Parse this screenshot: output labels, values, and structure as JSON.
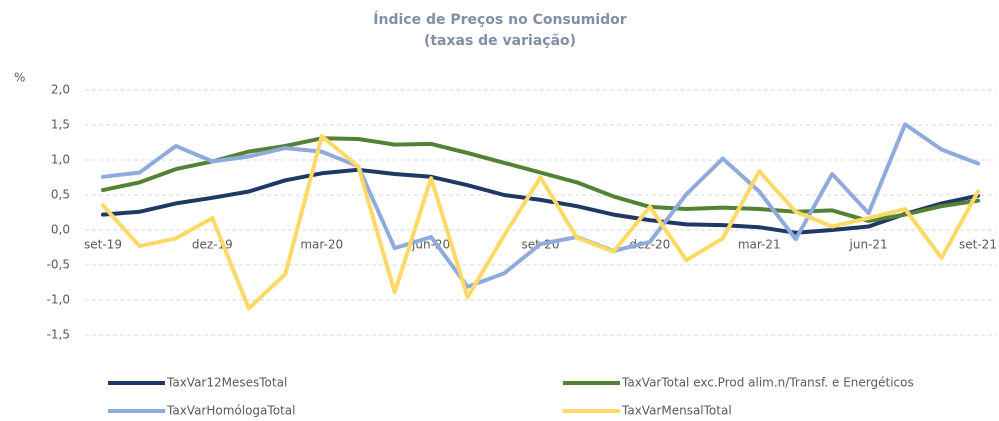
{
  "chart_data": {
    "type": "line",
    "title": [
      "Índice de Preços no Consumidor",
      "(taxas de variação)"
    ],
    "ylabel": "%",
    "categories": [
      "set-19",
      null,
      null,
      "dez-19",
      null,
      null,
      "mar-20",
      null,
      null,
      "jun-20",
      null,
      null,
      "set-20",
      null,
      null,
      "dez-20",
      null,
      null,
      "mar-21",
      null,
      null,
      "jun-21",
      null,
      null,
      "set-21"
    ],
    "series": [
      {
        "name": "TaxVar12MesesTotal",
        "color": "#1f3864",
        "values": [
          0.22,
          0.26,
          0.38,
          0.46,
          0.55,
          0.71,
          0.81,
          0.86,
          0.8,
          0.76,
          0.64,
          0.5,
          0.43,
          0.34,
          0.22,
          0.14,
          0.08,
          0.07,
          0.04,
          -0.04,
          0.0,
          0.05,
          0.23,
          0.38,
          0.49
        ]
      },
      {
        "name": "TaxVarTotal exc.Prod alim.n/Transf. e Energéticos",
        "color": "#548235",
        "values": [
          0.57,
          0.68,
          0.87,
          0.98,
          1.12,
          1.2,
          1.31,
          1.3,
          1.22,
          1.23,
          1.1,
          0.96,
          0.82,
          0.68,
          0.48,
          0.33,
          0.3,
          0.32,
          0.3,
          0.26,
          0.28,
          0.13,
          0.22,
          0.34,
          0.42
        ]
      },
      {
        "name": "TaxVarHomólogaTotal",
        "color": "#8faadc",
        "values": [
          0.76,
          0.82,
          1.2,
          0.98,
          1.05,
          1.17,
          1.12,
          0.91,
          -0.26,
          -0.1,
          -0.81,
          -0.62,
          -0.2,
          -0.1,
          -0.3,
          -0.17,
          0.51,
          1.02,
          0.55,
          -0.13,
          0.8,
          0.24,
          1.51,
          1.15,
          0.95
        ]
      },
      {
        "name": "TaxVarMensalTotal",
        "color": "#ffd966",
        "values": [
          0.35,
          -0.23,
          -0.12,
          0.17,
          -1.12,
          -0.63,
          1.34,
          0.91,
          -0.89,
          0.74,
          -0.96,
          -0.08,
          0.75,
          -0.11,
          -0.31,
          0.33,
          -0.43,
          -0.12,
          0.84,
          0.26,
          0.05,
          0.17,
          0.3,
          -0.4,
          0.55
        ]
      }
    ],
    "ylim": [
      -1.5,
      2.0
    ],
    "yticks": [
      {
        "value": -1.5,
        "label": "-1,5"
      },
      {
        "value": -1,
        "label": "-1,0"
      },
      {
        "value": -0.5,
        "label": "-0,5"
      },
      {
        "value": 0,
        "label": "0,0"
      },
      {
        "value": 0.5,
        "label": "0,5"
      },
      {
        "value": 1,
        "label": "1,0"
      },
      {
        "value": 1.5,
        "label": "1,5"
      },
      {
        "value": 2,
        "label": "2,0"
      }
    ],
    "grid": true
  }
}
